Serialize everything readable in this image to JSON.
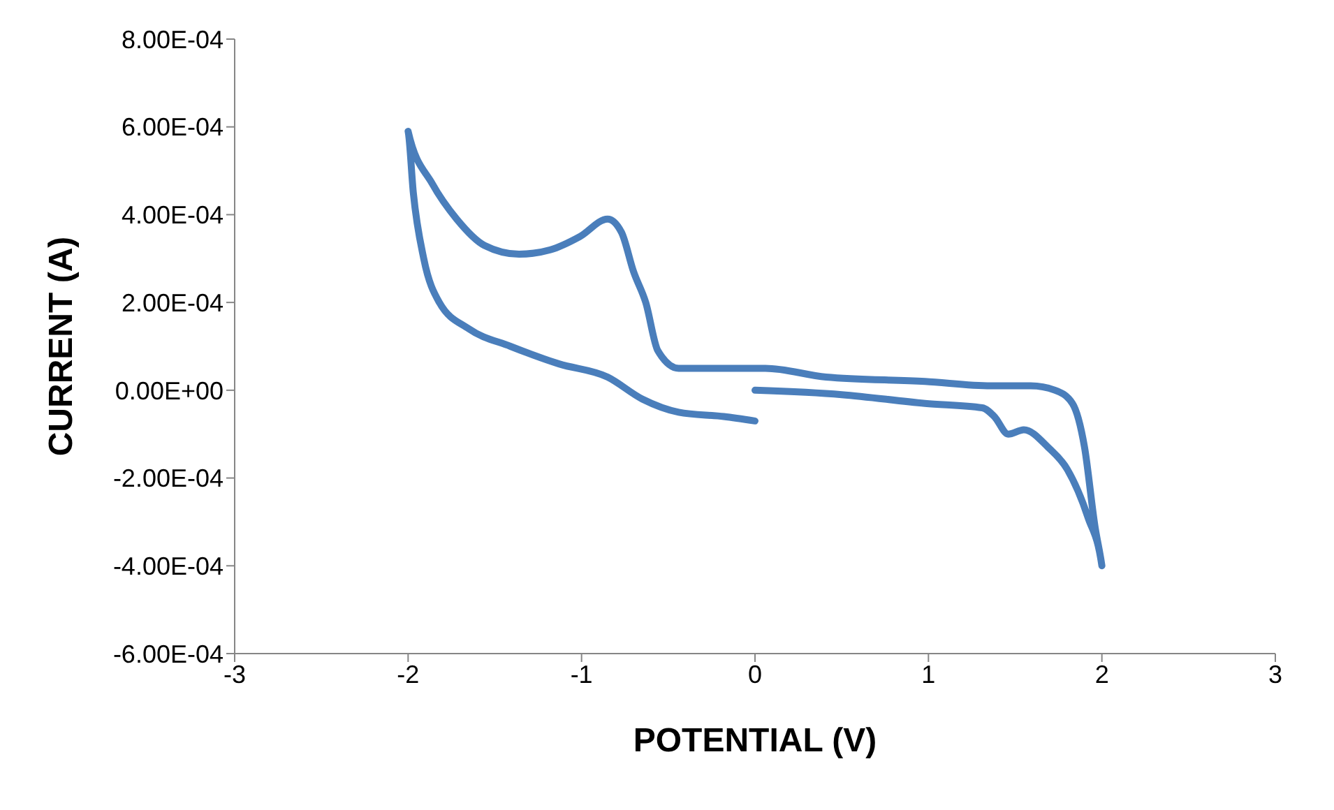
{
  "chart_data": {
    "type": "line",
    "xlabel": "POTENTIAL (V)",
    "ylabel": "CURRENT (A)",
    "xlim": [
      -3,
      3
    ],
    "xticks": [
      -3,
      -2,
      -1,
      0,
      1,
      2,
      3
    ],
    "ylim": [
      -0.0006,
      0.0008
    ],
    "yticks": [
      {
        "value": -0.0006,
        "label": "-6.00E-04"
      },
      {
        "value": -0.0004,
        "label": "-4.00E-04"
      },
      {
        "value": -0.0002,
        "label": "-2.00E-04"
      },
      {
        "value": 0,
        "label": "0.00E+00"
      },
      {
        "value": 0.0002,
        "label": "2.00E-04"
      },
      {
        "value": 0.0004,
        "label": "4.00E-04"
      },
      {
        "value": 0.0006,
        "label": "6.00E-04"
      },
      {
        "value": 0.0008,
        "label": "8.00E-04"
      }
    ],
    "grid": false,
    "marker": "none",
    "line_style": "solid",
    "series": [
      {
        "color": "#4a7ebb",
        "x": [
          0,
          0.5,
          0.98,
          1.31,
          1.38,
          1.46,
          1.55,
          1.69,
          1.8,
          1.92,
          2.0,
          1.96,
          1.9,
          1.83,
          1.73,
          1.59,
          1.36,
          0.98,
          0.41,
          0.06,
          0,
          -0.44,
          -0.56,
          -0.63,
          -0.7,
          -0.77,
          -0.85,
          -1.01,
          -1.18,
          -1.36,
          -1.56,
          -1.72,
          -1.86,
          -2.0,
          -1.97,
          -1.91,
          -1.82,
          -1.65,
          -1.41,
          -1.13,
          -0.85,
          -0.65,
          -0.44,
          -0.18,
          0
        ],
        "values": [
          0,
          -1e-05,
          -3e-05,
          -4e-05,
          -6e-05,
          -0.0001,
          -9e-05,
          -0.00013,
          -0.00018,
          -0.00029,
          -0.0004,
          -0.00031,
          -0.00013,
          -3e-05,
          0,
          1e-05,
          1e-05,
          2e-05,
          3e-05,
          5e-05,
          5e-05,
          5e-05,
          9e-05,
          0.0002,
          0.00027,
          0.00036,
          0.00039,
          0.00035,
          0.00032,
          0.00031,
          0.00033,
          0.00039,
          0.00047,
          0.00059,
          0.00045,
          0.0003,
          0.0002,
          0.00014,
          0.0001,
          6e-05,
          3e-05,
          -2e-05,
          -5e-05,
          -6e-05,
          -7e-05
        ]
      }
    ]
  }
}
